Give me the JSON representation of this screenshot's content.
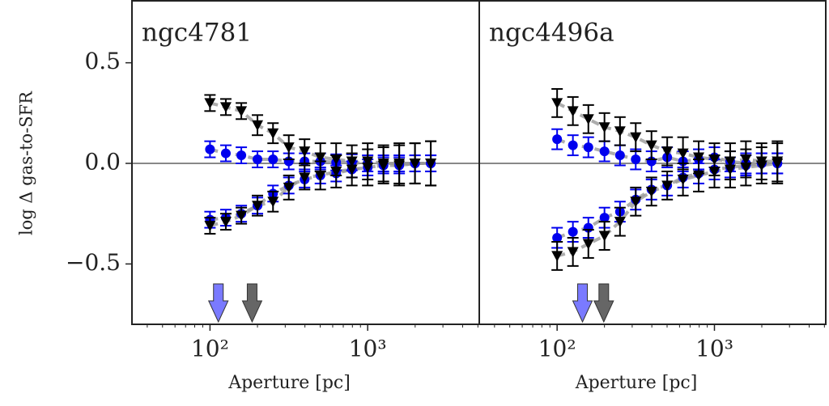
{
  "chart_data": [
    {
      "type": "errorbar",
      "title": "ngc4781",
      "xlabel": "Aperture [pc]",
      "ylabel": "log Δ gas-to-SFR",
      "xscale": "log",
      "xlim": [
        32,
        5100
      ],
      "ylim": [
        -0.8,
        0.8
      ],
      "xticks": [
        {
          "value": 100,
          "label": "10²"
        },
        {
          "value": 1000,
          "label": "10³"
        }
      ],
      "xminor_ticks": [
        40,
        50,
        60,
        70,
        80,
        90,
        200,
        300,
        400,
        500,
        600,
        700,
        800,
        900,
        2000,
        3000,
        4000,
        5000
      ],
      "yticks": [
        {
          "value": -0.5,
          "label": "−0.5"
        },
        {
          "value": 0,
          "label": "0.0"
        },
        0.5
      ],
      "hline": 0,
      "x": [
        100,
        126,
        158,
        200,
        251,
        316,
        398,
        501,
        631,
        794,
        1000,
        1259,
        1585,
        1995,
        2512
      ],
      "series": [
        {
          "color": "#0000ee",
          "marker": "o",
          "values": [
            0.07,
            0.05,
            0.04,
            0.02,
            0.02,
            0.01,
            0.01,
            0.01,
            0.005,
            0.005,
            0.0,
            0.0,
            0.0,
            0.0,
            0.0
          ],
          "errors": [
            0.04,
            0.04,
            0.04,
            0.04,
            0.04,
            0.04,
            0.04,
            0.04,
            0.04,
            0.04,
            0.04,
            0.04,
            0.04,
            0.04,
            0.04
          ]
        },
        {
          "color": "#0000ee",
          "marker": "o",
          "values": [
            -0.28,
            -0.27,
            -0.25,
            -0.21,
            -0.15,
            -0.11,
            -0.08,
            -0.06,
            -0.05,
            -0.03,
            -0.02,
            -0.01,
            -0.01,
            0.0,
            0.0
          ],
          "errors": [
            0.04,
            0.04,
            0.04,
            0.04,
            0.04,
            0.04,
            0.04,
            0.04,
            0.04,
            0.04,
            0.04,
            0.04,
            0.04,
            0.04,
            0.04
          ]
        },
        {
          "color": "#000000",
          "marker": "v",
          "values": [
            0.3,
            0.28,
            0.26,
            0.19,
            0.15,
            0.08,
            0.06,
            0.03,
            0.02,
            0.01,
            0.01,
            0.0,
            0.0,
            0.0,
            0.0
          ],
          "errors": [
            0.04,
            0.04,
            0.04,
            0.05,
            0.05,
            0.06,
            0.06,
            0.07,
            0.08,
            0.08,
            0.09,
            0.09,
            0.1,
            0.1,
            0.11
          ]
        },
        {
          "color": "#000000",
          "marker": "v",
          "values": [
            -0.31,
            -0.29,
            -0.26,
            -0.21,
            -0.19,
            -0.12,
            -0.07,
            -0.06,
            -0.04,
            -0.03,
            -0.02,
            -0.01,
            -0.01,
            0.0,
            0.0
          ],
          "errors": [
            0.04,
            0.04,
            0.04,
            0.05,
            0.05,
            0.06,
            0.06,
            0.07,
            0.08,
            0.08,
            0.09,
            0.09,
            0.1,
            0.1,
            0.11
          ]
        }
      ],
      "arrows": [
        {
          "color": "#7a7aff",
          "x": 113
        },
        {
          "color": "#666666",
          "x": 185
        }
      ]
    },
    {
      "type": "errorbar",
      "title": "ngc4496a",
      "xlabel": "Aperture [pc]",
      "xscale": "log",
      "xlim": [
        32,
        5100
      ],
      "ylim": [
        -0.8,
        0.8
      ],
      "xticks": [
        {
          "value": 100,
          "label": "10²"
        },
        {
          "value": 1000,
          "label": "10³"
        }
      ],
      "xminor_ticks": [
        40,
        50,
        60,
        70,
        80,
        90,
        200,
        300,
        400,
        500,
        600,
        700,
        800,
        900,
        2000,
        3000,
        4000,
        5000
      ],
      "hline": 0,
      "x": [
        100,
        126,
        158,
        200,
        251,
        316,
        398,
        501,
        631,
        794,
        1000,
        1259,
        1585,
        1995,
        2512
      ],
      "series": [
        {
          "color": "#0000ee",
          "marker": "o",
          "values": [
            0.12,
            0.09,
            0.08,
            0.06,
            0.04,
            0.02,
            0.01,
            0.03,
            0.01,
            0.02,
            0.03,
            0.01,
            0.0,
            0.0,
            0.0
          ],
          "errors": [
            0.05,
            0.05,
            0.05,
            0.05,
            0.05,
            0.05,
            0.05,
            0.05,
            0.05,
            0.05,
            0.05,
            0.05,
            0.05,
            0.05,
            0.05
          ]
        },
        {
          "color": "#0000ee",
          "marker": "o",
          "values": [
            -0.37,
            -0.34,
            -0.32,
            -0.27,
            -0.24,
            -0.18,
            -0.13,
            -0.11,
            -0.07,
            -0.05,
            -0.03,
            -0.02,
            -0.01,
            0.0,
            0.0
          ],
          "errors": [
            0.05,
            0.05,
            0.05,
            0.05,
            0.05,
            0.05,
            0.05,
            0.05,
            0.05,
            0.05,
            0.05,
            0.05,
            0.05,
            0.05,
            0.05
          ]
        },
        {
          "color": "#000000",
          "marker": "v",
          "values": [
            0.3,
            0.26,
            0.22,
            0.18,
            0.16,
            0.13,
            0.09,
            0.06,
            0.05,
            0.03,
            0.02,
            0.01,
            0.02,
            0.01,
            0.01
          ],
          "errors": [
            0.07,
            0.07,
            0.07,
            0.07,
            0.07,
            0.07,
            0.07,
            0.07,
            0.08,
            0.08,
            0.08,
            0.09,
            0.09,
            0.09,
            0.1
          ]
        },
        {
          "color": "#000000",
          "marker": "v",
          "values": [
            -0.46,
            -0.44,
            -0.4,
            -0.36,
            -0.29,
            -0.19,
            -0.14,
            -0.11,
            -0.08,
            -0.06,
            -0.04,
            -0.03,
            -0.02,
            -0.01,
            0.0
          ],
          "errors": [
            0.07,
            0.07,
            0.07,
            0.07,
            0.07,
            0.07,
            0.07,
            0.07,
            0.08,
            0.08,
            0.08,
            0.09,
            0.09,
            0.09,
            0.1
          ]
        }
      ],
      "arrows": [
        {
          "color": "#7a7aff",
          "x": 145
        },
        {
          "color": "#666666",
          "x": 198
        }
      ]
    }
  ]
}
